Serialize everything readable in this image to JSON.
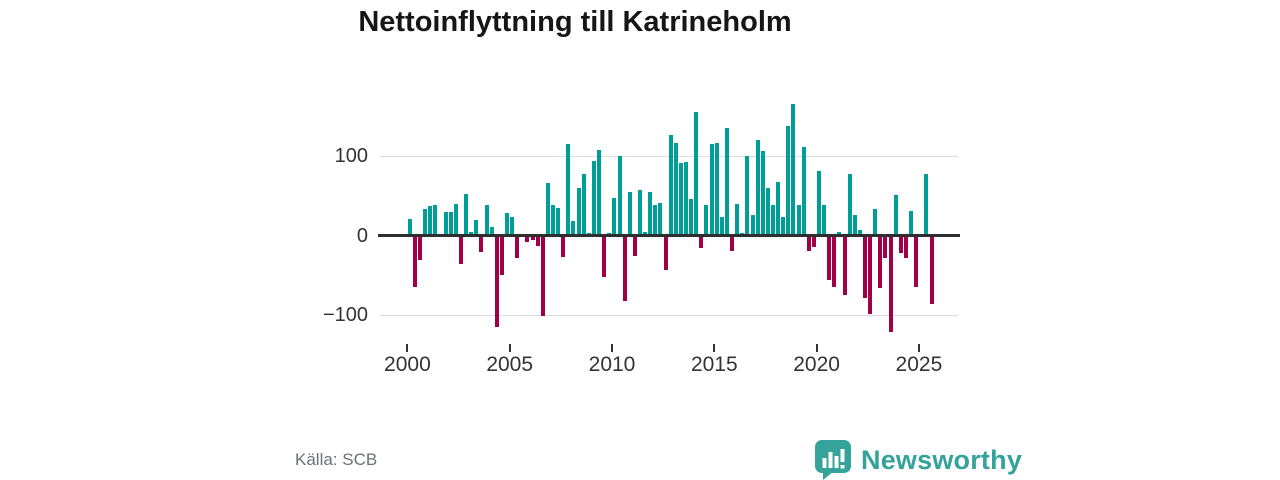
{
  "title": "Nettoinflyttning till Katrineholm",
  "source": "Källa: SCB",
  "logo": {
    "text": "Newsworthy",
    "icon": "newsworthy-speech-bubble-bar-chart-icon"
  },
  "colors": {
    "positive": "#009e97",
    "negative": "#a00045",
    "axis": "#2e2e2e",
    "grid": "#dcdcdc",
    "text": "#333333",
    "title_text": "#161616",
    "source_text": "#6c7078",
    "logo": "#35a39b"
  },
  "chart_data": {
    "type": "bar",
    "title": "Nettoinflyttning till Katrineholm",
    "frequency": "quarterly",
    "start_year": 2000,
    "start_quarter": 1,
    "end_label": "2025 Q3",
    "grid": "horizontal",
    "legend": "none",
    "y_ticks": [
      -100,
      0,
      100
    ],
    "y_tick_labels": [
      "−100",
      "0",
      "100"
    ],
    "ylim": [
      -135,
      175
    ],
    "x_tick_labels": [
      "2000",
      "2005",
      "2010",
      "2015",
      "2020",
      "2025"
    ],
    "x_tick_quarter_indexes": [
      0,
      20,
      40,
      60,
      80,
      100
    ],
    "values": [
      21,
      -65,
      -30,
      34,
      37,
      38,
      0,
      30,
      30,
      40,
      -36,
      53,
      5,
      20,
      -21,
      38,
      11,
      -115,
      -50,
      28,
      24,
      -28,
      0,
      -8,
      -5,
      -13,
      -101,
      66,
      38,
      35,
      -27,
      115,
      19,
      60,
      78,
      4,
      94,
      108,
      -52,
      4,
      47,
      100,
      -82,
      55,
      -26,
      58,
      5,
      55,
      38,
      41,
      -43,
      127,
      117,
      91,
      93,
      46,
      156,
      -16,
      39,
      115,
      117,
      24,
      136,
      -19,
      40,
      4,
      100,
      26,
      120,
      106,
      60,
      38,
      68,
      23,
      138,
      166,
      38,
      112,
      -19,
      -14,
      82,
      38,
      -56,
      -65,
      5,
      -75,
      77,
      26,
      7,
      -79,
      -98,
      34,
      -66,
      -28,
      -121,
      51,
      -22,
      -28,
      31,
      -65,
      0,
      78,
      -86
    ]
  }
}
